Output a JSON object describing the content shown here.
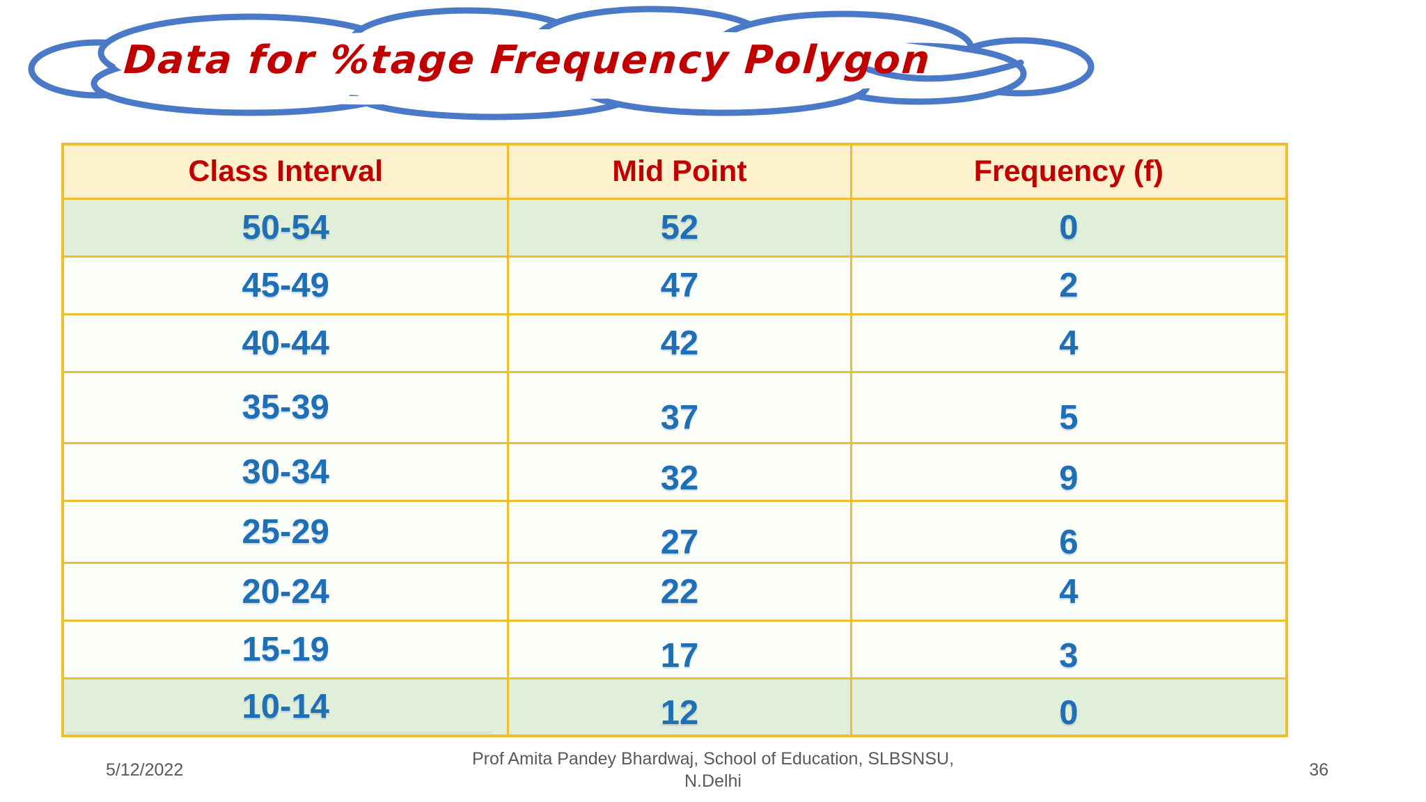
{
  "slide": {
    "title": "Data for %tage Frequency Polygon",
    "footer": {
      "date": "5/12/2022",
      "credit_line1": "Prof Amita Pandey Bhardwaj, School of Education, SLBSNSU,",
      "credit_line2": "N.Delhi",
      "page_number": "36"
    }
  },
  "chart_data": {
    "type": "table",
    "title": "Data for %tage Frequency Polygon",
    "columns": [
      "Class Interval",
      "Mid Point",
      "Frequency (f)"
    ],
    "rows": [
      [
        "50-54",
        "52",
        "0"
      ],
      [
        "45-49",
        "47",
        "2"
      ],
      [
        "40-44",
        "42",
        "4"
      ],
      [
        "35-39",
        "37",
        "5"
      ],
      [
        "30-34",
        "32",
        "9"
      ],
      [
        "25-29",
        "27",
        "6"
      ],
      [
        "20-24",
        "22",
        "4"
      ],
      [
        "15-19",
        "17",
        "3"
      ],
      [
        "10-14",
        "12",
        "0"
      ]
    ],
    "highlighted_row_indices": [
      0,
      8
    ],
    "layout_hints": {
      "header_bg": "#FDF0CC",
      "highlight_row_bg": "#E0EFDA",
      "row_bg": "#FCFEFA",
      "border_color": "#EFBE2E",
      "header_text_color": "#C00000",
      "value_text_color": "#1E6FB5"
    }
  },
  "colors": {
    "title_red": "#C00000",
    "cloud_stroke_blue": "#4A79C8",
    "footer_gray": "#595959"
  }
}
